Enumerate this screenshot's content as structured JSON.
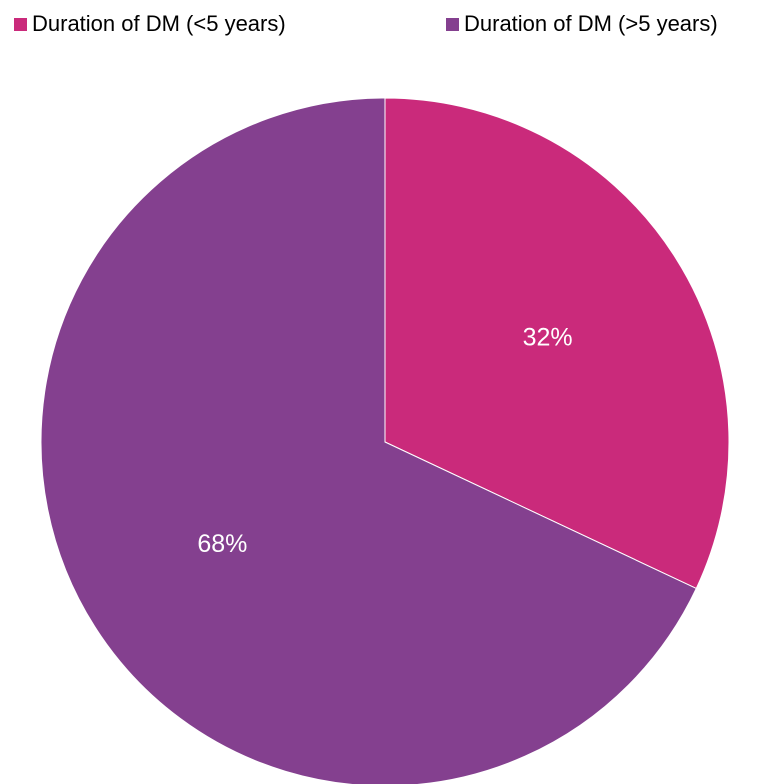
{
  "chart_data": {
    "type": "pie",
    "title": "",
    "legend_position": "top",
    "slices": [
      {
        "name": "Duration of DM (<5 years)",
        "value": 32,
        "label": "32%",
        "color": "#CA2A7B"
      },
      {
        "name": "Duration of DM (>5 years)",
        "value": 68,
        "label": "68%",
        "color": "#84408F"
      }
    ]
  }
}
